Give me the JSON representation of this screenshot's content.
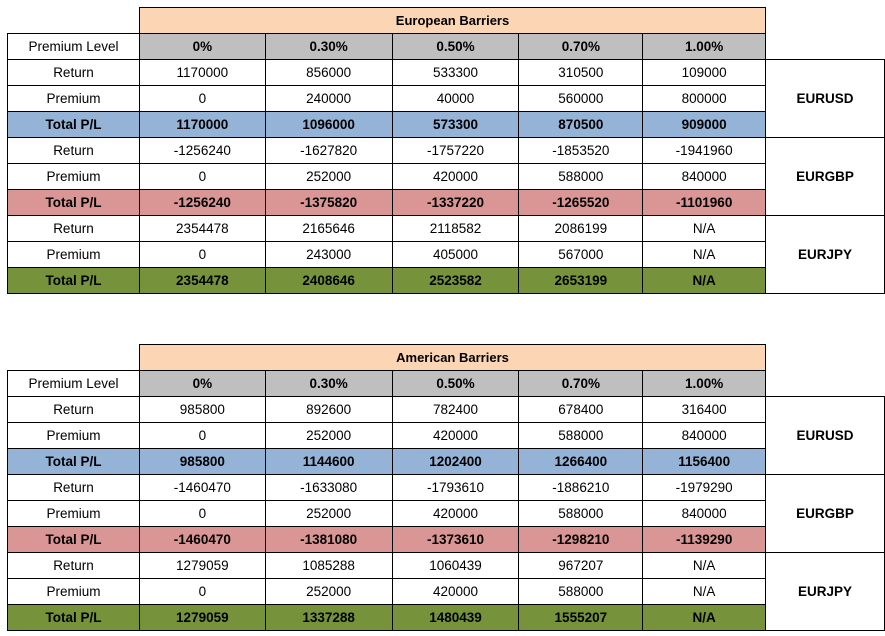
{
  "tables": [
    {
      "title": "European Barriers",
      "header_label": "Premium Level",
      "levels": [
        "0%",
        "0.30%",
        "0.50%",
        "0.70%",
        "1.00%"
      ],
      "groups": [
        {
          "pair": "EURUSD",
          "color": "#95b3d7",
          "rows": [
            {
              "label": "Return",
              "values": [
                "1170000",
                "856000",
                "533300",
                "310500",
                "109000"
              ]
            },
            {
              "label": "Premium",
              "values": [
                "0",
                "240000",
                "40000",
                "560000",
                "800000"
              ]
            },
            {
              "label": "Total P/L",
              "values": [
                "1170000",
                "1096000",
                "573300",
                "870500",
                "909000"
              ]
            }
          ]
        },
        {
          "pair": "EURGBP",
          "color": "#da9694",
          "rows": [
            {
              "label": "Return",
              "values": [
                "-1256240",
                "-1627820",
                "-1757220",
                "-1853520",
                "-1941960"
              ]
            },
            {
              "label": "Premium",
              "values": [
                "0",
                "252000",
                "420000",
                "588000",
                "840000"
              ]
            },
            {
              "label": "Total P/L",
              "values": [
                "-1256240",
                "-1375820",
                "-1337220",
                "-1265520",
                "-1101960"
              ]
            }
          ]
        },
        {
          "pair": "EURJPY",
          "color": "#76933c",
          "rows": [
            {
              "label": "Return",
              "values": [
                "2354478",
                "2165646",
                "2118582",
                "2086199",
                "N/A"
              ]
            },
            {
              "label": "Premium",
              "values": [
                "0",
                "243000",
                "405000",
                "567000",
                "N/A"
              ]
            },
            {
              "label": "Total P/L",
              "values": [
                "2354478",
                "2408646",
                "2523582",
                "2653199",
                "N/A"
              ]
            }
          ]
        }
      ]
    },
    {
      "title": "American Barriers",
      "header_label": "Premium Level",
      "levels": [
        "0%",
        "0.30%",
        "0.50%",
        "0.70%",
        "1.00%"
      ],
      "groups": [
        {
          "pair": "EURUSD",
          "color": "#95b3d7",
          "rows": [
            {
              "label": "Return",
              "values": [
                "985800",
                "892600",
                "782400",
                "678400",
                "316400"
              ]
            },
            {
              "label": "Premium",
              "values": [
                "0",
                "252000",
                "420000",
                "588000",
                "840000"
              ]
            },
            {
              "label": "Total P/L",
              "values": [
                "985800",
                "1144600",
                "1202400",
                "1266400",
                "1156400"
              ]
            }
          ]
        },
        {
          "pair": "EURGBP",
          "color": "#da9694",
          "rows": [
            {
              "label": "Return",
              "values": [
                "-1460470",
                "-1633080",
                "-1793610",
                "-1886210",
                "-1979290"
              ]
            },
            {
              "label": "Premium",
              "values": [
                "0",
                "252000",
                "420000",
                "588000",
                "840000"
              ]
            },
            {
              "label": "Total P/L",
              "values": [
                "-1460470",
                "-1381080",
                "-1373610",
                "-1298210",
                "-1139290"
              ]
            }
          ]
        },
        {
          "pair": "EURJPY",
          "color": "#76933c",
          "rows": [
            {
              "label": "Return",
              "values": [
                "1279059",
                "1085288",
                "1060439",
                "967207",
                "N/A"
              ]
            },
            {
              "label": "Premium",
              "values": [
                "0",
                "252000",
                "420000",
                "588000",
                "N/A"
              ]
            },
            {
              "label": "Total P/L",
              "values": [
                "1279059",
                "1337288",
                "1480439",
                "1555207",
                "N/A"
              ]
            }
          ]
        }
      ]
    }
  ]
}
